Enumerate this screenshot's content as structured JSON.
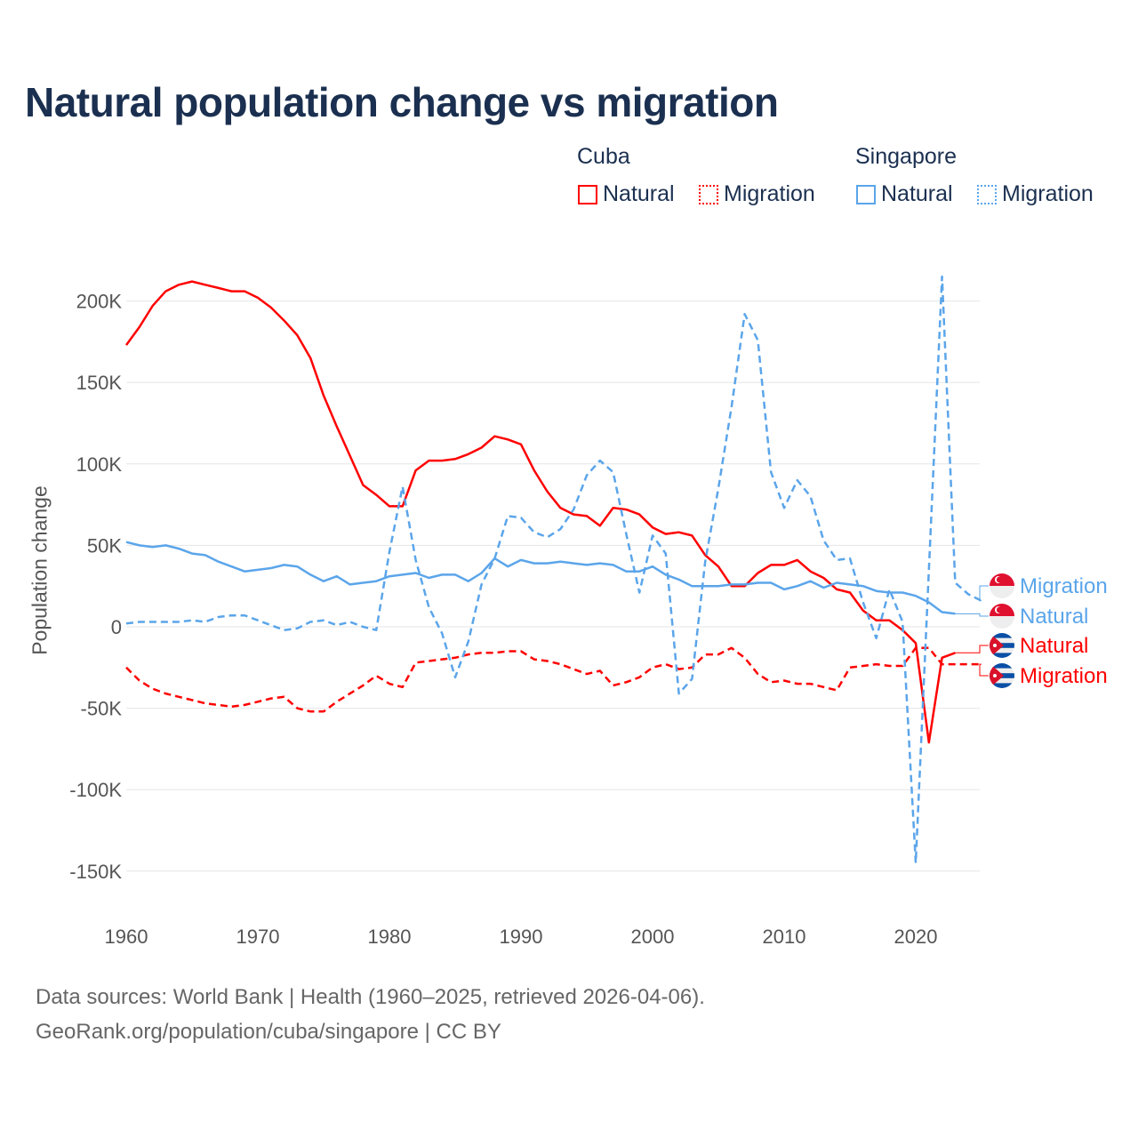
{
  "title": "Natural population change vs migration",
  "legend": {
    "groups": [
      {
        "name": "Cuba",
        "color": "#ff0000",
        "items": [
          "Natural",
          "Migration"
        ]
      },
      {
        "name": "Singapore",
        "color": "#5ba5ea",
        "items": [
          "Natural",
          "Migration"
        ]
      }
    ]
  },
  "chart_data": {
    "type": "line",
    "title": "Natural population change vs migration",
    "xlabel": "",
    "ylabel": "Population change",
    "xlim": [
      1960,
      2025
    ],
    "ylim": [
      -170000,
      225000
    ],
    "x_ticks": [
      1960,
      1970,
      1980,
      1990,
      2000,
      2010,
      2020
    ],
    "y_ticks": [
      {
        "value": 200000,
        "label": "200K"
      },
      {
        "value": 150000,
        "label": "150K"
      },
      {
        "value": 100000,
        "label": "100K"
      },
      {
        "value": 50000,
        "label": "50K"
      },
      {
        "value": 0,
        "label": "0"
      },
      {
        "value": -50000,
        "label": "-50K"
      },
      {
        "value": -100000,
        "label": "-100K"
      },
      {
        "value": -150000,
        "label": "-150K"
      }
    ],
    "grid": true,
    "legend_position": "top-right",
    "series": [
      {
        "name": "Cuba Natural",
        "country": "Cuba",
        "kind": "Natural",
        "color": "#ff0000",
        "dash": false,
        "start_year": 1960,
        "values_k": [
          173,
          184,
          197,
          206,
          210,
          212,
          210,
          208,
          206,
          206,
          202,
          196,
          188,
          179,
          165,
          142,
          123,
          105,
          87,
          81,
          74,
          74,
          96,
          102,
          102,
          103,
          106,
          110,
          117,
          115,
          112,
          96,
          83,
          73,
          69,
          68,
          62,
          73,
          72,
          69,
          61,
          57,
          58,
          56,
          44,
          37,
          25,
          25,
          33,
          38,
          38,
          41,
          34,
          30,
          23,
          21,
          10,
          4,
          4,
          -2,
          -10,
          -71,
          -19,
          -16
        ]
      },
      {
        "name": "Cuba Migration",
        "country": "Cuba",
        "kind": "Migration",
        "color": "#ff0000",
        "dash": true,
        "start_year": 1960,
        "values_k": [
          -25,
          -33,
          -38,
          -41,
          -43,
          -45,
          -47,
          -48,
          -49,
          -48,
          -46,
          -44,
          -43,
          -50,
          -52,
          -52,
          -46,
          -41,
          -36,
          -30,
          -35,
          -37,
          -22,
          -21,
          -20,
          -19,
          -17,
          -16,
          -16,
          -15,
          -15,
          -20,
          -21,
          -23,
          -26,
          -29,
          -27,
          -36,
          -34,
          -31,
          -25,
          -23,
          -26,
          -25,
          -17,
          -17,
          -13,
          -19,
          -29,
          -34,
          -33,
          -35,
          -35,
          -37,
          -39,
          -25,
          -24,
          -23,
          -24,
          -24,
          -13,
          -13,
          -23,
          -23,
          -23,
          -23
        ]
      },
      {
        "name": "Singapore Natural",
        "country": "Singapore",
        "kind": "Natural",
        "color": "#5ba5ea",
        "dash": false,
        "start_year": 1960,
        "values_k": [
          52,
          50,
          49,
          50,
          48,
          45,
          44,
          40,
          37,
          34,
          35,
          36,
          38,
          37,
          32,
          28,
          31,
          26,
          27,
          28,
          31,
          32,
          33,
          30,
          32,
          32,
          28,
          33,
          42,
          37,
          41,
          39,
          39,
          40,
          39,
          38,
          39,
          38,
          34,
          34,
          37,
          32,
          29,
          25,
          25,
          25,
          26,
          26,
          27,
          27,
          23,
          25,
          28,
          24,
          27,
          26,
          25,
          22,
          21,
          21,
          19,
          15,
          9,
          8
        ]
      },
      {
        "name": "Singapore Migration",
        "country": "Singapore",
        "kind": "Migration",
        "color": "#5ba5ea",
        "dash": true,
        "start_year": 1960,
        "values_k": [
          2,
          3,
          3,
          3,
          3,
          4,
          3,
          6,
          7,
          7,
          4,
          1,
          -2,
          -1,
          3,
          4,
          1,
          3,
          0,
          -2,
          46,
          86,
          41,
          12,
          -4,
          -31,
          -9,
          26,
          42,
          68,
          67,
          58,
          55,
          60,
          72,
          93,
          102,
          95,
          57,
          21,
          56,
          45,
          -41,
          -32,
          40,
          85,
          135,
          192,
          176,
          95,
          73,
          90,
          80,
          53,
          41,
          42,
          15,
          -7,
          23,
          3,
          -145,
          35,
          215,
          27,
          20,
          16
        ]
      }
    ],
    "end_labels": [
      {
        "text": "Migration",
        "country": "Singapore",
        "color": "#5ba5ea"
      },
      {
        "text": "Natural",
        "country": "Singapore",
        "color": "#5ba5ea"
      },
      {
        "text": "Natural",
        "country": "Cuba",
        "color": "#ff0000"
      },
      {
        "text": "Migration",
        "country": "Cuba",
        "color": "#ff0000"
      }
    ]
  },
  "sources": {
    "line1": "Data sources: World Bank | Health (1960–2025, retrieved 2026-04-06).",
    "line2": "GeoRank.org/population/cuba/singapore | CC BY"
  }
}
